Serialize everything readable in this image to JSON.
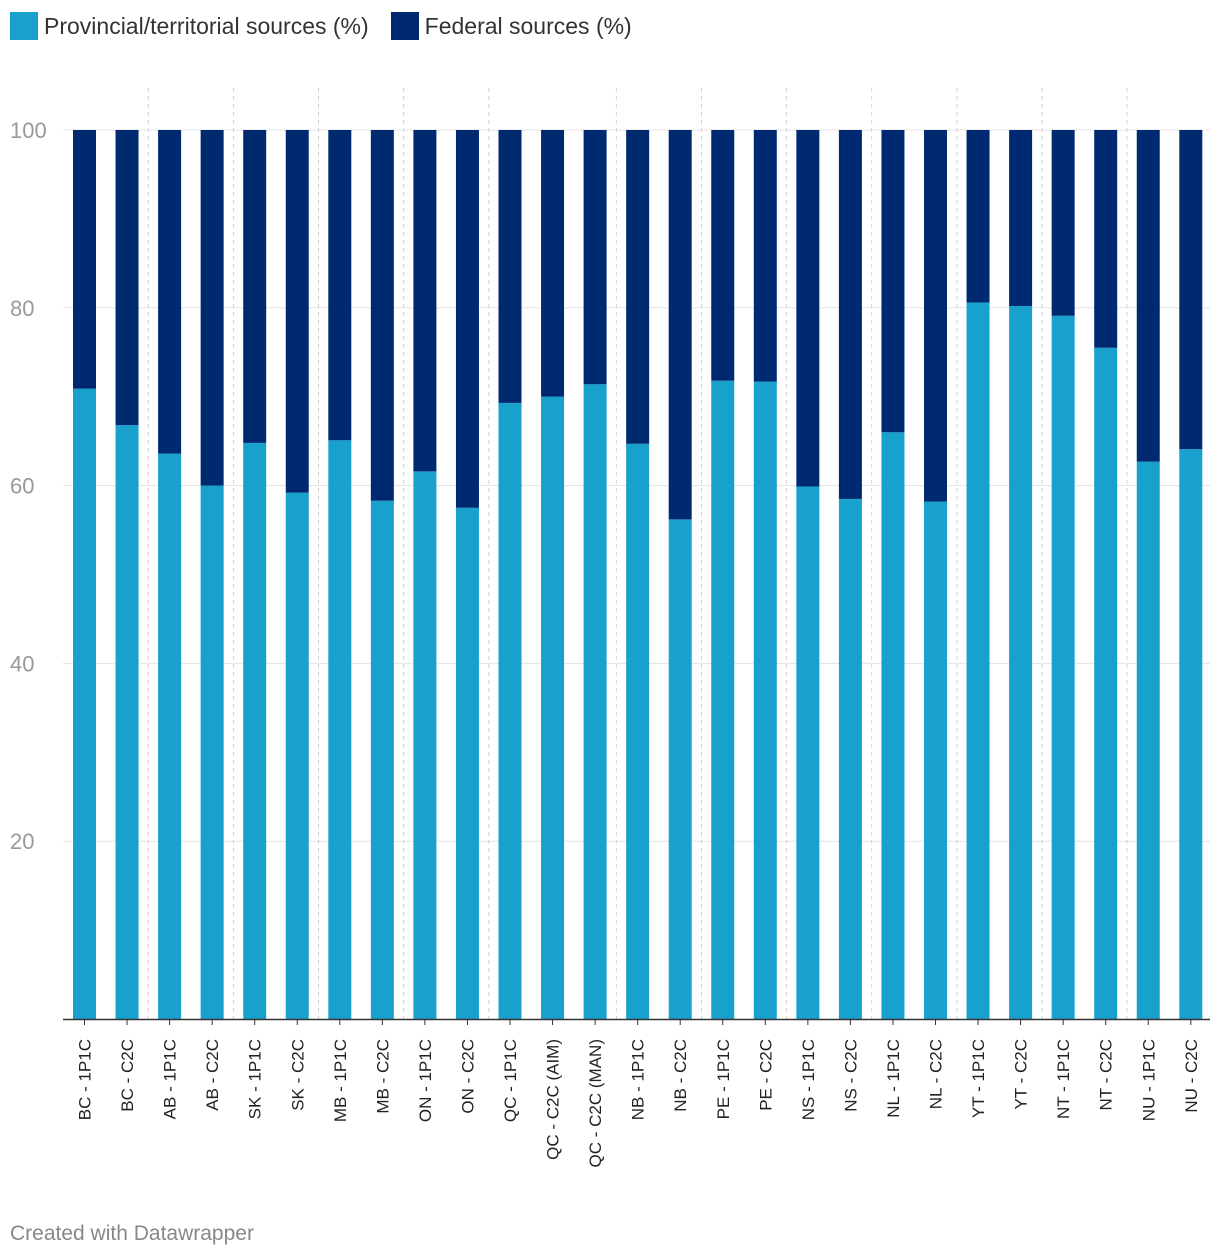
{
  "legend": [
    {
      "label": "Provincial/territorial sources (%)",
      "color": "#18a1cd"
    },
    {
      "label": "Federal sources (%)",
      "color": "#002a6f"
    }
  ],
  "footer": "Created with Datawrapper",
  "chart_data": {
    "type": "bar",
    "stacked": true,
    "title": "",
    "xlabel": "",
    "ylabel": "",
    "ylim": [
      0,
      100
    ],
    "yticks": [
      20,
      40,
      60,
      80,
      100
    ],
    "grid": true,
    "legend_position": "top-left",
    "categories": [
      "BC - 1P1C",
      "BC - C2C",
      "AB - 1P1C",
      "AB - C2C",
      "SK - 1P1C",
      "SK - C2C",
      "MB - 1P1C",
      "MB - C2C",
      "ON - 1P1C",
      "ON - C2C",
      "QC - 1P1C",
      "QC - C2C (AIM)",
      "QC - C2C (MAN)",
      "NB - 1P1C",
      "NB - C2C",
      "PE - 1P1C",
      "PE - C2C",
      "NS - 1P1C",
      "NS - C2C",
      "NL - 1P1C",
      "NL - C2C",
      "YT - 1P1C",
      "YT - C2C",
      "NT - 1P1C",
      "NT - C2C",
      "NU - 1P1C",
      "NU - C2C"
    ],
    "group_dividers_after": [
      1,
      3,
      5,
      7,
      9,
      12,
      14,
      16,
      18,
      20,
      22,
      24
    ],
    "series": [
      {
        "name": "Provincial/territorial sources (%)",
        "color": "#18a1cd",
        "values": [
          70.9,
          66.8,
          63.6,
          60.0,
          64.8,
          59.2,
          65.1,
          58.3,
          61.6,
          57.5,
          69.3,
          70.0,
          71.4,
          64.7,
          56.2,
          71.8,
          71.7,
          59.9,
          58.5,
          66.0,
          58.2,
          80.6,
          80.2,
          79.1,
          75.5,
          62.7,
          64.1
        ]
      },
      {
        "name": "Federal sources (%)",
        "color": "#002a6f",
        "values": [
          29.1,
          33.2,
          36.4,
          40.0,
          35.2,
          40.8,
          34.9,
          41.7,
          38.4,
          42.5,
          30.7,
          30.0,
          28.6,
          35.3,
          43.8,
          28.2,
          28.3,
          40.1,
          41.5,
          34.0,
          41.8,
          19.4,
          19.8,
          20.9,
          24.5,
          37.3,
          35.9
        ]
      }
    ]
  }
}
